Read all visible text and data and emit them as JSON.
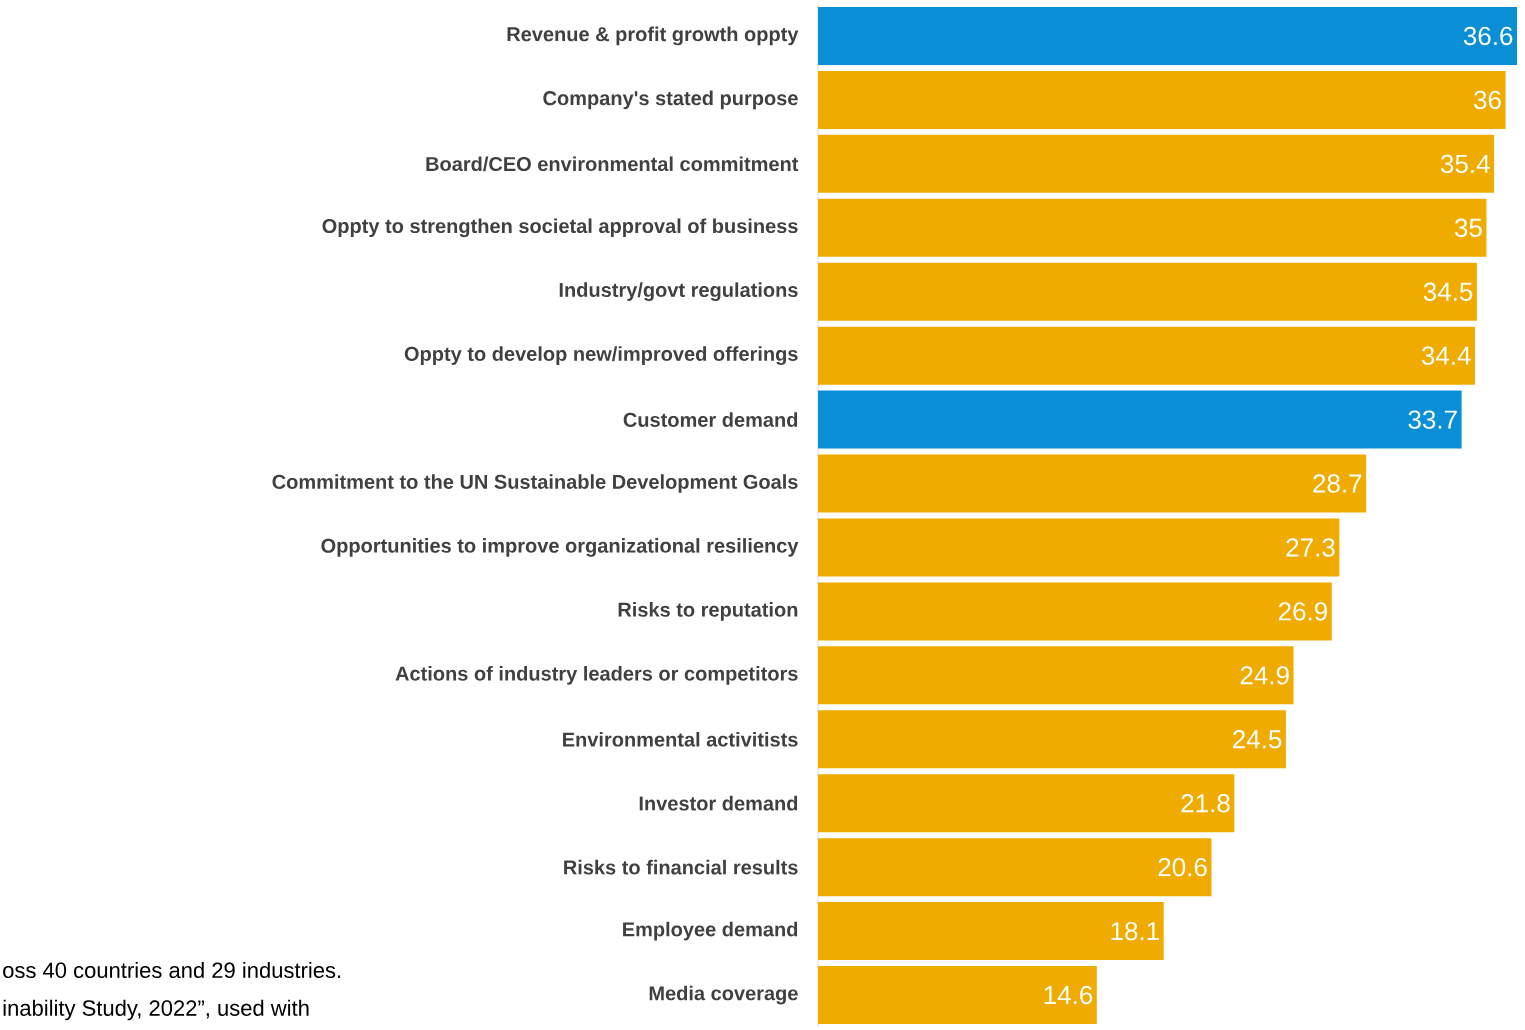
{
  "chart_data": {
    "type": "bar",
    "orientation": "horizontal",
    "data_labels": true,
    "categories": [
      "Revenue & profit growth oppty",
      "Company's stated purpose",
      "Board/CEO environmental commitment",
      "Oppty to strengthen societal approval of business",
      "Industry/govt regulations",
      "Oppty to develop new/improved offerings",
      "Customer demand",
      "Commitment to the UN Sustainable Development Goals",
      "Opportunities to improve organizational resiliency",
      "Risks to reputation",
      "Actions of industry leaders or competitors",
      "Environmental activitists",
      "Investor demand",
      "Risks to financial results",
      "Employee demand",
      "Media coverage"
    ],
    "values": [
      36.6,
      36,
      35.4,
      35,
      34.5,
      34.4,
      33.7,
      28.7,
      27.3,
      26.9,
      24.9,
      24.5,
      21.8,
      20.6,
      18.1,
      14.6
    ],
    "colors": [
      "#0a8fd6",
      "#f0ab00",
      "#f0ab00",
      "#f0ab00",
      "#f0ab00",
      "#f0ab00",
      "#0a8fd6",
      "#f0ab00",
      "#f0ab00",
      "#f0ab00",
      "#f0ab00",
      "#f0ab00",
      "#f0ab00",
      "#f0ab00",
      "#f0ab00",
      "#f0ab00"
    ],
    "annotations": [
      "oss 40 countries and 29 industries.",
      "inability Study, 2022”, used with"
    ]
  }
}
